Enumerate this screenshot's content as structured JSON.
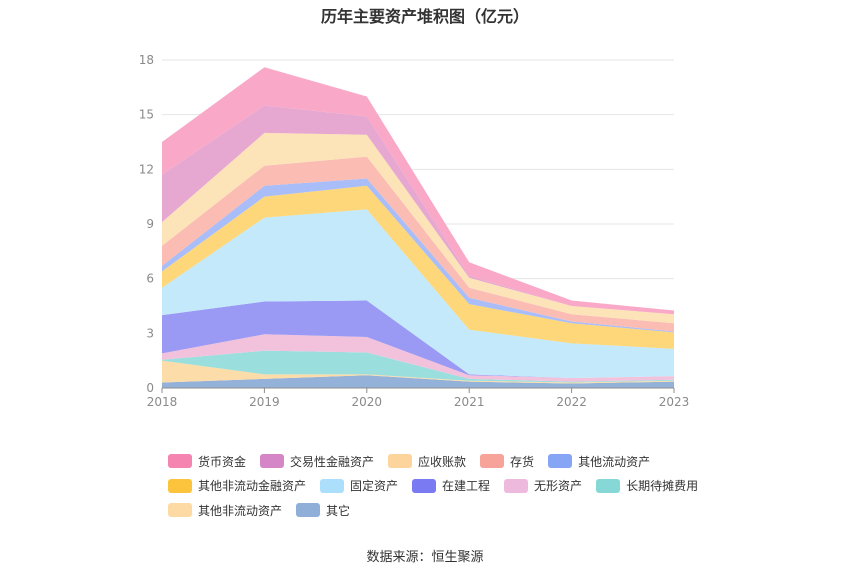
{
  "page": {
    "title": "历年主要资产堆积图（亿元）",
    "source": "数据来源：恒生聚源"
  },
  "chart_data": {
    "type": "area",
    "stacked": true,
    "title": "历年主要资产堆积图（亿元）",
    "x": [
      "2018",
      "2019",
      "2020",
      "2021",
      "2022",
      "2023"
    ],
    "ylim": [
      0,
      18
    ],
    "yticks": [
      0,
      3,
      6,
      9,
      12,
      15,
      18
    ],
    "grid": true,
    "legend_position": "bottom",
    "series": [
      {
        "name": "其它",
        "color": "#93b1d9",
        "values": [
          0.3,
          0.5,
          0.7,
          0.35,
          0.25,
          0.35
        ]
      },
      {
        "name": "其他非流动资产",
        "color": "#fcdca8",
        "values": [
          1.2,
          0.25,
          0.05,
          0.05,
          0.05,
          0.05
        ]
      },
      {
        "name": "长期待摊费用",
        "color": "#9adfde",
        "values": [
          0.05,
          1.3,
          1.2,
          0.1,
          0.05,
          0.05
        ]
      },
      {
        "name": "无形资产",
        "color": "#f2c2dd",
        "values": [
          0.35,
          0.9,
          0.85,
          0.2,
          0.2,
          0.2
        ]
      },
      {
        "name": "在建工程",
        "color": "#9a9af4",
        "values": [
          2.1,
          1.8,
          2.0,
          0.05,
          0.0,
          0.0
        ]
      },
      {
        "name": "固定资产",
        "color": "#c3e9fb",
        "values": [
          1.5,
          4.6,
          5.0,
          2.45,
          1.9,
          1.5
        ]
      },
      {
        "name": "其他非流动金融资产",
        "color": "#fdd77a",
        "values": [
          0.9,
          1.15,
          1.3,
          1.4,
          1.1,
          0.9
        ]
      },
      {
        "name": "其他流动资产",
        "color": "#a9bdf8",
        "values": [
          0.3,
          0.6,
          0.4,
          0.35,
          0.1,
          0.05
        ]
      },
      {
        "name": "存货",
        "color": "#fbbcb4",
        "values": [
          1.1,
          1.1,
          1.2,
          0.55,
          0.4,
          0.45
        ]
      },
      {
        "name": "应收账款",
        "color": "#fde3b8",
        "values": [
          1.3,
          1.8,
          1.2,
          0.55,
          0.45,
          0.5
        ]
      },
      {
        "name": "交易性金融资产",
        "color": "#e6a7d0",
        "values": [
          2.6,
          1.5,
          1.0,
          0.1,
          0.0,
          0.0
        ]
      },
      {
        "name": "货币资金",
        "color": "#f9a8c8",
        "values": [
          1.8,
          2.1,
          1.1,
          0.75,
          0.3,
          0.2
        ]
      }
    ],
    "legend_order": [
      "货币资金",
      "交易性金融资产",
      "应收账款",
      "存货",
      "其他流动资产",
      "其他非流动金融资产",
      "固定资产",
      "在建工程",
      "无形资产",
      "长期待摊费用",
      "其他非流动资产",
      "其它"
    ],
    "legend_colors": {
      "货币资金": "#f585b0",
      "交易性金融资产": "#d586c6",
      "应收账款": "#fcd49c",
      "存货": "#f7a399",
      "其他流动资产": "#86a6f5",
      "其他非流动金融资产": "#fcc43c",
      "固定资产": "#abdffb",
      "在建工程": "#7a7af2",
      "无形资产": "#edb9dc",
      "长期待摊费用": "#85d8d6",
      "其他非流动资产": "#fdd9a3",
      "其它": "#8fafd8"
    }
  }
}
